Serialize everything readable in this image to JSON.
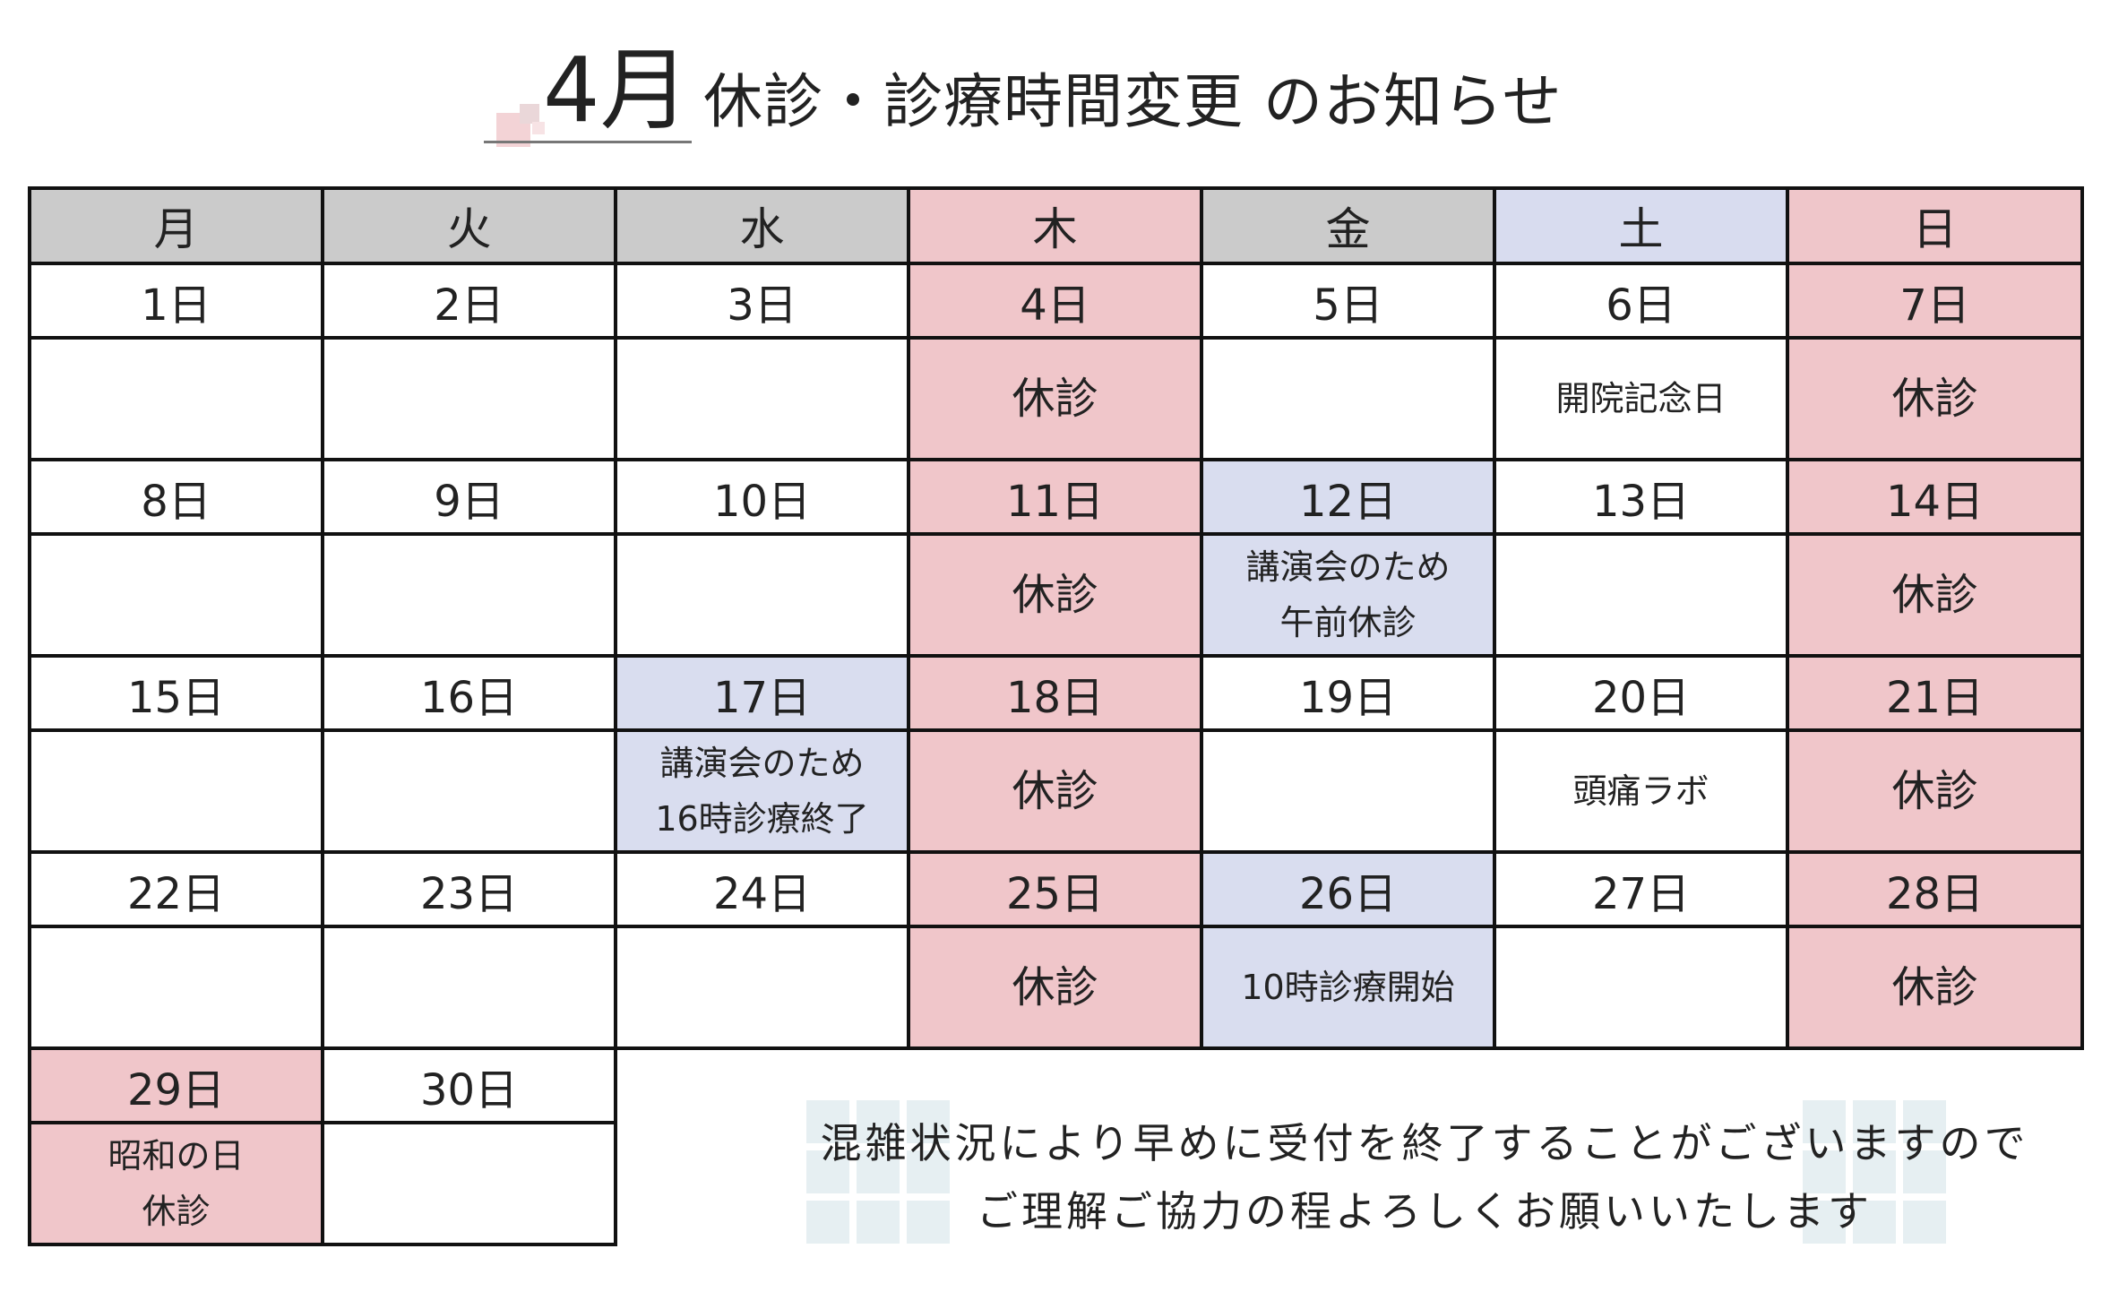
{
  "title": {
    "month": "4月",
    "heading": "休診・診療時間変更 のお知らせ"
  },
  "colors": {
    "closed": "#f0c6ca",
    "changed": "#d9ddef",
    "header_gray": "#cbcbcb"
  },
  "weekdays": [
    "月",
    "火",
    "水",
    "木",
    "金",
    "土",
    "日"
  ],
  "weeks": [
    {
      "dates": [
        "1日",
        "2日",
        "3日",
        "4日",
        "5日",
        "6日",
        "7日"
      ],
      "notes": [
        "",
        "",
        "",
        "休診",
        "",
        "開院記念日",
        "休診"
      ]
    },
    {
      "dates": [
        "8日",
        "9日",
        "10日",
        "11日",
        "12日",
        "13日",
        "14日"
      ],
      "notes": [
        "",
        "",
        "",
        "休診",
        [
          "講演会のため",
          "午前休診"
        ],
        "",
        "休診"
      ]
    },
    {
      "dates": [
        "15日",
        "16日",
        "17日",
        "18日",
        "19日",
        "20日",
        "21日"
      ],
      "notes": [
        "",
        "",
        [
          "講演会のため",
          "16時診療終了"
        ],
        "休診",
        "",
        "頭痛ラボ",
        "休診"
      ]
    },
    {
      "dates": [
        "22日",
        "23日",
        "24日",
        "25日",
        "26日",
        "27日",
        "28日"
      ],
      "notes": [
        "",
        "",
        "",
        "休診",
        "10時診療開始",
        "",
        "休診"
      ]
    },
    {
      "dates": [
        "29日",
        "30日"
      ],
      "notes": [
        [
          "昭和の日",
          "休診"
        ],
        ""
      ]
    }
  ],
  "footer": {
    "line1": "混雑状況により早めに受付を終了することがございますので",
    "line2": "ご理解ご協力の程よろしくお願いいたします"
  }
}
